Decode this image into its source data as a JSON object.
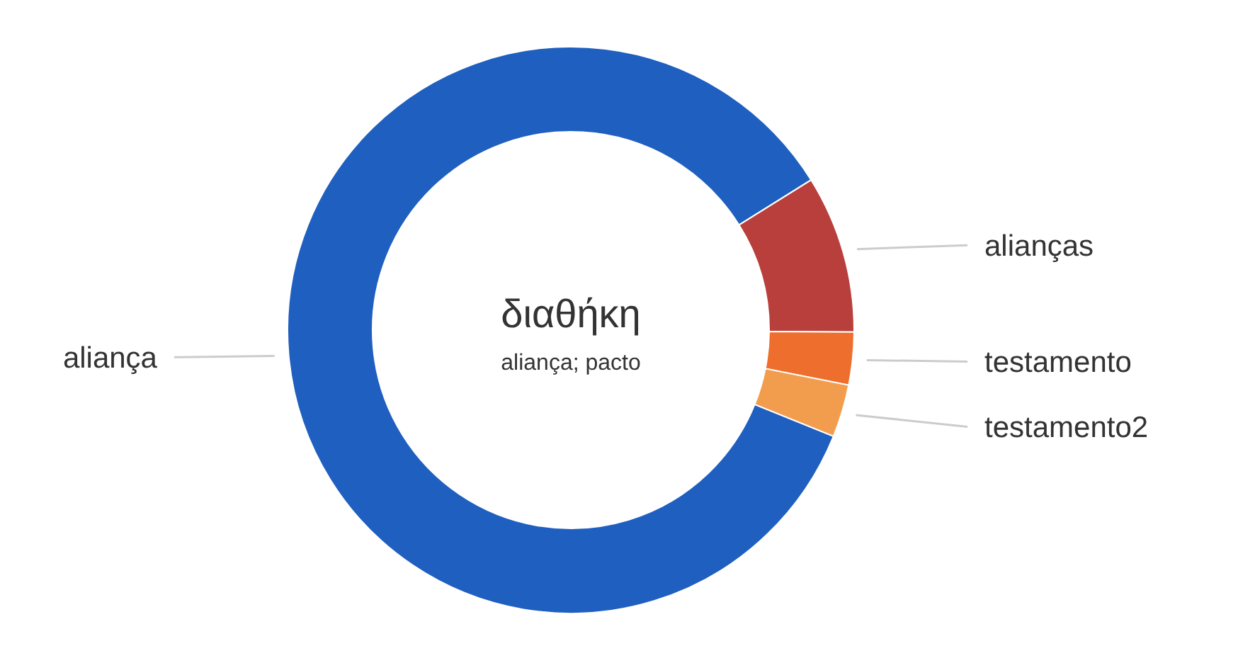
{
  "chart_data": {
    "type": "donut",
    "title": "διαθήκη",
    "subtitle": "aliança; pacto",
    "categories": [
      "aliança",
      "alianças",
      "testamento",
      "testamento2"
    ],
    "values": [
      85,
      9,
      3,
      3
    ],
    "colors": [
      "#1f5fbf",
      "#b83f3b",
      "#ee6f2d",
      "#f29d4e"
    ]
  }
}
